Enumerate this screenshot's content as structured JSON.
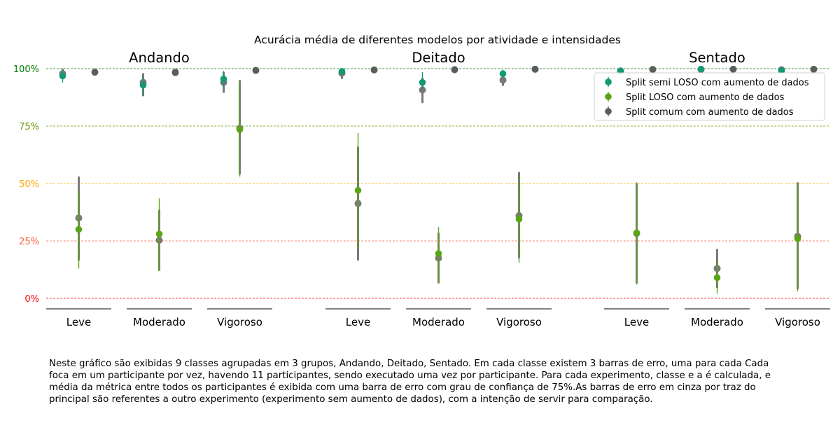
{
  "chart_data": {
    "type": "scatter",
    "title": "Acurácia média de diferentes modelos por atividade e intensidades",
    "groups": [
      "Andando",
      "Deitado",
      "Sentado"
    ],
    "categories": [
      "Leve",
      "Moderado",
      "Vigoroso"
    ],
    "yticks": [
      {
        "label": "100%",
        "value": 100,
        "color": "#008000"
      },
      {
        "label": "75%",
        "value": 75,
        "color": "#6a9a00"
      },
      {
        "label": "50%",
        "value": 50,
        "color": "#ffa500"
      },
      {
        "label": "25%",
        "value": 25,
        "color": "#ff6347"
      },
      {
        "label": "0%",
        "value": 0,
        "color": "#ff0000"
      }
    ],
    "ylim": [
      -5,
      102
    ],
    "grid": "horizontal dashed",
    "legend_position": "top-right",
    "series": [
      {
        "name": "Split semi LOSO com aumento de dados",
        "color": "#139a74",
        "comparison_color": "#787878",
        "mean": [
          96.8,
          92.8,
          95.5,
          98.8,
          94.0,
          97.8,
          99.0,
          99.8,
          99.2
        ],
        "low": [
          94.0,
          88.5,
          92.0,
          97.5,
          91.0,
          96.0,
          97.5,
          99.0,
          98.0
        ],
        "high": [
          99.5,
          97.0,
          99.0,
          100.0,
          98.5,
          99.5,
          100.0,
          100.0,
          100.0
        ],
        "comparison_mean": [
          97.8,
          94.0,
          94.0,
          98.0,
          90.7,
          95.0,
          99.0,
          99.6,
          99.5
        ],
        "comparison_low": [
          95.5,
          88.0,
          89.5,
          95.5,
          85.0,
          92.5,
          98.0,
          99.0,
          98.5
        ],
        "comparison_high": [
          100.0,
          98.0,
          98.5,
          100.0,
          96.0,
          97.5,
          100.0,
          100.0,
          100.0
        ]
      },
      {
        "name": "Split LOSO com aumento de dados",
        "color": "#5aa514",
        "comparison_color": "#7a7a7a",
        "mean": [
          30.0,
          28.0,
          73.5,
          47.0,
          19.5,
          34.5,
          28.5,
          9.0,
          26.0
        ],
        "low": [
          13.0,
          12.0,
          53.0,
          22.0,
          7.0,
          15.5,
          6.0,
          2.0,
          3.0
        ],
        "high": [
          47.0,
          43.5,
          94.5,
          72.0,
          31.0,
          54.0,
          50.5,
          16.0,
          49.5
        ],
        "comparison_mean": [
          35.0,
          25.3,
          74.0,
          41.3,
          17.5,
          36.0,
          28.3,
          13.0,
          27.0
        ],
        "comparison_low": [
          16.5,
          12.0,
          54.0,
          16.5,
          6.5,
          17.5,
          6.5,
          4.5,
          4.0
        ],
        "comparison_high": [
          53.0,
          38.5,
          95.0,
          66.0,
          28.5,
          55.0,
          50.0,
          21.5,
          50.5
        ]
      },
      {
        "name": "Split comum com aumento de dados",
        "color": "#5c5c5c",
        "comparison_color": "#808080",
        "mean": [
          98.5,
          98.5,
          99.3,
          99.5,
          99.6,
          99.8,
          99.7,
          99.8,
          99.8
        ],
        "low": [
          98.0,
          97.5,
          98.8,
          99.0,
          99.0,
          99.5,
          99.2,
          99.5,
          99.5
        ],
        "high": [
          99.0,
          99.5,
          99.8,
          100.0,
          100.0,
          100.0,
          100.0,
          100.0,
          100.0
        ],
        "comparison_mean": [
          98.4,
          98.2,
          99.2,
          99.4,
          99.5,
          99.7,
          99.6,
          99.7,
          99.7
        ],
        "comparison_low": [
          97.8,
          97.2,
          98.6,
          98.8,
          98.8,
          99.3,
          99.0,
          99.3,
          99.3
        ],
        "comparison_high": [
          99.0,
          99.2,
          99.8,
          100.0,
          100.0,
          100.0,
          100.0,
          100.0,
          100.0
        ]
      }
    ]
  },
  "caption": "Neste gráfico são exibidas 9 classes agrupadas em 3 grupos, Andando, Deitado, Sentado. Em cada classe existem 3 barras de erro, uma para cada Cada\nfoca em um participante por vez, havendo 11 participantes, sendo executado uma vez por participante. Para cada experimento, classe e a é calculada, e\nmédia da métrica entre todos os participantes é exibida com uma barra de erro com grau de confiança de 75%.As barras de erro em cinza por traz do\nprincipal são referentes a outro experimento (experimento sem aumento de dados), com a intenção de servir para comparação."
}
